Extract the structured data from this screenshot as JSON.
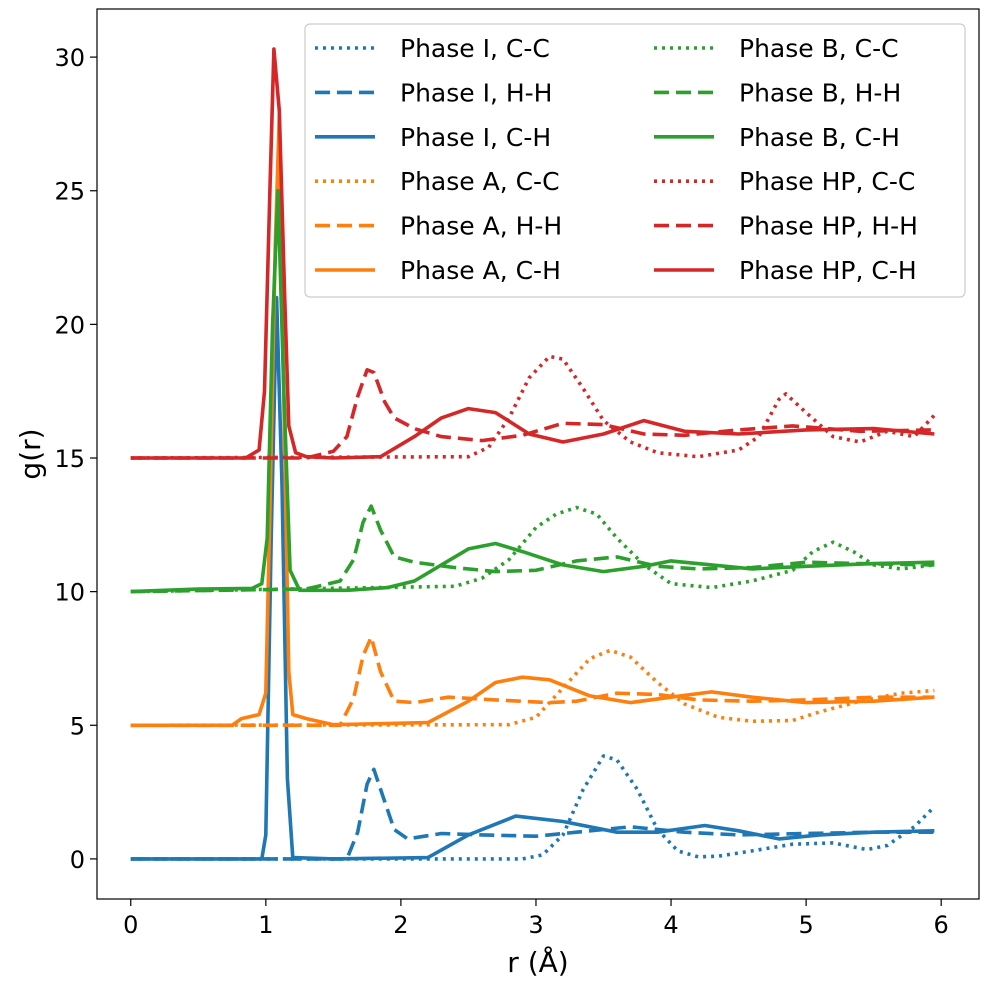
{
  "chart_data": {
    "type": "line",
    "title": "",
    "xlabel": "r (Å)",
    "ylabel": "g(r)",
    "xlim": [
      -0.25,
      6.28
    ],
    "ylim": [
      -1.5,
      31.8
    ],
    "xticks": [
      0,
      1,
      2,
      3,
      4,
      5,
      6
    ],
    "yticks": [
      0,
      5,
      10,
      15,
      20,
      25,
      30
    ],
    "grid": false,
    "legend_position": "top-right",
    "legend_columns": 2,
    "series": [
      {
        "name": "Phase I, C-C",
        "color": "#1f77b4",
        "style": "dotted",
        "offset": 0,
        "x": [
          0,
          2.9,
          3.05,
          3.2,
          3.35,
          3.5,
          3.6,
          3.75,
          3.9,
          4.05,
          4.2,
          4.35,
          4.6,
          4.9,
          5.2,
          5.45,
          5.6,
          5.8,
          5.95
        ],
        "y": [
          0,
          0,
          0.15,
          0.9,
          2.6,
          3.85,
          3.7,
          2.6,
          1.1,
          0.3,
          0.08,
          0.1,
          0.3,
          0.55,
          0.6,
          0.35,
          0.5,
          1.2,
          1.95
        ]
      },
      {
        "name": "Phase I, H-H",
        "color": "#1f77b4",
        "style": "dashed",
        "offset": 0,
        "x": [
          0,
          1.6,
          1.68,
          1.75,
          1.8,
          1.87,
          1.95,
          2.05,
          2.3,
          2.6,
          3.0,
          3.3,
          3.7,
          4.1,
          4.5,
          5.0,
          5.5,
          5.95
        ],
        "y": [
          0,
          0,
          1.0,
          2.8,
          3.35,
          2.3,
          1.1,
          0.75,
          0.95,
          0.9,
          0.85,
          1.0,
          1.2,
          1.0,
          0.9,
          0.95,
          1.0,
          1.0
        ]
      },
      {
        "name": "Phase I, C-H",
        "color": "#1f77b4",
        "style": "solid",
        "offset": 0,
        "x": [
          0,
          0.97,
          1.0,
          1.04,
          1.08,
          1.12,
          1.16,
          1.2,
          1.5,
          2.2,
          2.5,
          2.85,
          3.2,
          3.6,
          3.9,
          4.25,
          4.5,
          4.8,
          5.1,
          5.5,
          5.95
        ],
        "y": [
          0,
          0,
          0.9,
          12,
          21,
          14,
          3,
          0.05,
          0,
          0.05,
          0.9,
          1.6,
          1.4,
          1.0,
          1.0,
          1.25,
          1.05,
          0.75,
          0.9,
          1.0,
          1.05
        ]
      },
      {
        "name": "Phase A, C-C",
        "color": "#ff7f0e",
        "style": "dotted",
        "offset": 5,
        "x": [
          0,
          2.8,
          3.0,
          3.2,
          3.4,
          3.55,
          3.7,
          3.9,
          4.1,
          4.35,
          4.6,
          4.9,
          5.1,
          5.4,
          5.7,
          5.95
        ],
        "y": [
          0,
          0.02,
          0.3,
          1.4,
          2.5,
          2.8,
          2.55,
          1.6,
          0.8,
          0.3,
          0.15,
          0.18,
          0.5,
          0.9,
          1.2,
          1.3
        ]
      },
      {
        "name": "Phase A, H-H",
        "color": "#ff7f0e",
        "style": "dashed",
        "offset": 5,
        "x": [
          0,
          1.55,
          1.65,
          1.72,
          1.78,
          1.85,
          1.95,
          2.1,
          2.35,
          2.7,
          3.1,
          3.3,
          3.6,
          3.9,
          4.2,
          4.6,
          5.0,
          5.5,
          5.95
        ],
        "y": [
          0,
          0,
          1.0,
          2.6,
          3.3,
          2.0,
          0.9,
          0.85,
          1.05,
          0.95,
          0.85,
          0.9,
          1.2,
          1.15,
          0.95,
          0.9,
          0.95,
          1.05,
          1.05
        ]
      },
      {
        "name": "Phase A, C-H",
        "color": "#ff7f0e",
        "style": "solid",
        "offset": 5,
        "x": [
          0,
          0.75,
          0.82,
          0.95,
          1.0,
          1.03,
          1.07,
          1.1,
          1.13,
          1.17,
          1.2,
          1.3,
          1.5,
          2.2,
          2.5,
          2.7,
          2.9,
          3.1,
          3.4,
          3.7,
          4.0,
          4.3,
          4.6,
          5.0,
          5.5,
          5.95
        ],
        "y": [
          0,
          0,
          0.25,
          0.4,
          1.2,
          8,
          18,
          22.8,
          13,
          2,
          0.4,
          0.25,
          0.02,
          0.1,
          0.9,
          1.6,
          1.8,
          1.7,
          1.1,
          0.85,
          1.05,
          1.25,
          1.05,
          0.85,
          0.9,
          1.05
        ]
      },
      {
        "name": "Phase B, C-C",
        "color": "#2ca02c",
        "style": "dotted",
        "offset": 10,
        "x": [
          0,
          2.4,
          2.6,
          2.8,
          3.0,
          3.15,
          3.3,
          3.45,
          3.6,
          3.8,
          4.0,
          4.3,
          4.6,
          4.9,
          5.05,
          5.2,
          5.35,
          5.5,
          5.7,
          5.95
        ],
        "y": [
          0,
          0.2,
          0.5,
          1.2,
          2.4,
          2.9,
          3.15,
          2.9,
          2.0,
          1.0,
          0.3,
          0.15,
          0.4,
          0.8,
          1.5,
          1.85,
          1.5,
          1.0,
          0.85,
          1.0
        ]
      },
      {
        "name": "Phase B, H-H",
        "color": "#2ca02c",
        "style": "dashed",
        "offset": 10,
        "x": [
          0,
          1.3,
          1.55,
          1.65,
          1.72,
          1.78,
          1.85,
          1.95,
          2.1,
          2.4,
          2.7,
          3.0,
          3.3,
          3.6,
          3.9,
          4.2,
          4.6,
          5.0,
          5.4,
          5.95
        ],
        "y": [
          0,
          0.1,
          0.4,
          1.2,
          2.6,
          3.2,
          2.3,
          1.3,
          1.1,
          0.9,
          0.75,
          0.8,
          1.15,
          1.3,
          0.95,
          0.85,
          0.9,
          1.1,
          1.05,
          1.0
        ]
      },
      {
        "name": "Phase B, C-H",
        "color": "#2ca02c",
        "style": "solid",
        "offset": 10,
        "x": [
          0,
          0.5,
          0.9,
          0.97,
          1.01,
          1.05,
          1.09,
          1.13,
          1.18,
          1.25,
          1.6,
          1.9,
          2.1,
          2.3,
          2.5,
          2.7,
          2.9,
          3.2,
          3.5,
          3.8,
          4.0,
          4.3,
          4.6,
          5.0,
          5.5,
          5.95
        ],
        "y": [
          0,
          0.1,
          0.12,
          0.3,
          2,
          10,
          15,
          8,
          0.8,
          0.05,
          0.05,
          0.15,
          0.4,
          1.0,
          1.6,
          1.8,
          1.5,
          1.0,
          0.75,
          0.95,
          1.15,
          1.0,
          0.85,
          0.95,
          1.05,
          1.1
        ]
      },
      {
        "name": "Phase HP, C-C",
        "color": "#d62728",
        "style": "dotted",
        "offset": 15,
        "x": [
          0,
          2.5,
          2.65,
          2.8,
          2.95,
          3.1,
          3.2,
          3.35,
          3.5,
          3.7,
          3.9,
          4.2,
          4.5,
          4.65,
          4.8,
          4.85,
          5.0,
          5.2,
          5.4,
          5.6,
          5.8,
          5.95
        ],
        "y": [
          0,
          0.05,
          0.4,
          1.5,
          3.0,
          3.8,
          3.7,
          2.6,
          1.4,
          0.6,
          0.2,
          0.05,
          0.3,
          0.8,
          2.2,
          2.4,
          1.7,
          0.8,
          0.6,
          1.0,
          0.8,
          1.6
        ]
      },
      {
        "name": "Phase HP, H-H",
        "color": "#d62728",
        "style": "dashed",
        "offset": 15,
        "x": [
          0,
          1.3,
          1.5,
          1.6,
          1.68,
          1.75,
          1.8,
          1.88,
          1.95,
          2.1,
          2.3,
          2.6,
          2.9,
          3.2,
          3.5,
          3.8,
          4.1,
          4.5,
          4.9,
          5.4,
          5.95
        ],
        "y": [
          0,
          0,
          0.25,
          0.8,
          2.3,
          3.3,
          3.2,
          2.1,
          1.5,
          1.1,
          0.8,
          0.65,
          0.85,
          1.3,
          1.25,
          0.9,
          0.85,
          1.05,
          1.2,
          1.0,
          1.05
        ]
      },
      {
        "name": "Phase HP, C-H",
        "color": "#d62728",
        "style": "solid",
        "offset": 15,
        "x": [
          0,
          0.85,
          0.95,
          0.99,
          1.03,
          1.06,
          1.1,
          1.14,
          1.17,
          1.22,
          1.3,
          1.5,
          1.85,
          2.1,
          2.3,
          2.5,
          2.7,
          2.95,
          3.2,
          3.5,
          3.8,
          4.1,
          4.5,
          5.0,
          5.5,
          5.95
        ],
        "y": [
          0,
          0,
          0.3,
          2.5,
          10,
          15.3,
          13,
          6,
          1.2,
          0.2,
          0.05,
          0,
          0.05,
          0.8,
          1.5,
          1.85,
          1.7,
          0.9,
          0.6,
          0.9,
          1.4,
          1.0,
          0.9,
          1.05,
          1.1,
          0.9
        ]
      }
    ]
  }
}
